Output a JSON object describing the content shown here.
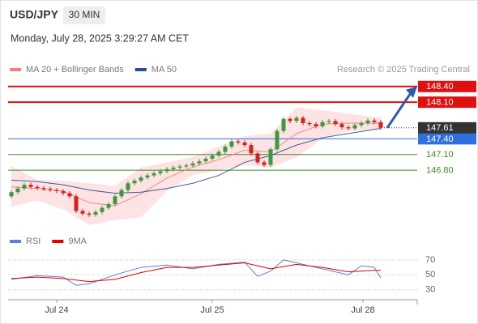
{
  "header": {
    "symbol": "USD/JPY",
    "interval": "30 MIN",
    "timestamp": "Monday, July 28, 2025 3:29:27 AM CET",
    "copyright": "Research © 2025 Trading Central"
  },
  "chart_data": [
    {
      "type": "candlestick",
      "candles": [
        [
          146.3,
          146.42,
          146.26,
          146.38
        ],
        [
          146.38,
          146.49,
          146.34,
          146.45
        ],
        [
          146.45,
          146.56,
          146.41,
          146.52
        ],
        [
          146.52,
          146.56,
          146.44,
          146.48
        ],
        [
          146.48,
          146.52,
          146.42,
          146.46
        ],
        [
          146.46,
          146.5,
          146.4,
          146.44
        ],
        [
          146.44,
          146.48,
          146.38,
          146.42
        ],
        [
          146.42,
          146.46,
          146.36,
          146.4
        ],
        [
          146.4,
          146.44,
          146.32,
          146.36
        ],
        [
          146.36,
          146.4,
          146.26,
          146.3
        ],
        [
          146.3,
          146.34,
          145.98,
          146.02
        ],
        [
          146.02,
          146.06,
          145.93,
          145.97
        ],
        [
          145.97,
          146.01,
          145.91,
          145.95
        ],
        [
          145.95,
          146.04,
          145.91,
          146.0
        ],
        [
          146.0,
          146.12,
          145.96,
          146.08
        ],
        [
          146.08,
          146.19,
          146.04,
          146.15
        ],
        [
          146.15,
          146.34,
          146.11,
          146.3
        ],
        [
          146.3,
          146.46,
          146.26,
          146.42
        ],
        [
          146.42,
          146.59,
          146.38,
          146.55
        ],
        [
          146.55,
          146.64,
          146.51,
          146.6
        ],
        [
          146.6,
          146.7,
          146.56,
          146.66
        ],
        [
          146.66,
          146.74,
          146.62,
          146.7
        ],
        [
          146.7,
          146.78,
          146.66,
          146.74
        ],
        [
          146.74,
          146.82,
          146.7,
          146.78
        ],
        [
          146.78,
          146.86,
          146.74,
          146.82
        ],
        [
          146.82,
          146.89,
          146.78,
          146.85
        ],
        [
          146.85,
          146.91,
          146.81,
          146.87
        ],
        [
          146.87,
          146.93,
          146.83,
          146.89
        ],
        [
          146.89,
          146.97,
          146.85,
          146.93
        ],
        [
          146.93,
          147.01,
          146.89,
          146.97
        ],
        [
          146.97,
          147.06,
          146.93,
          147.02
        ],
        [
          147.02,
          147.12,
          146.98,
          147.08
        ],
        [
          147.08,
          147.19,
          147.04,
          147.15
        ],
        [
          147.15,
          147.29,
          147.11,
          147.25
        ],
        [
          147.25,
          147.39,
          147.21,
          147.35
        ],
        [
          147.35,
          147.39,
          147.29,
          147.33
        ],
        [
          147.33,
          147.37,
          147.24,
          147.28
        ],
        [
          147.28,
          147.32,
          147.08,
          147.12
        ],
        [
          147.12,
          147.16,
          146.91,
          146.95
        ],
        [
          146.95,
          146.99,
          146.86,
          146.9
        ],
        [
          146.9,
          147.24,
          146.86,
          147.2
        ],
        [
          147.2,
          147.59,
          147.16,
          147.55
        ],
        [
          147.55,
          147.82,
          147.51,
          147.78
        ],
        [
          147.78,
          147.82,
          147.7,
          147.74
        ],
        [
          147.74,
          147.84,
          147.7,
          147.8
        ],
        [
          147.8,
          147.84,
          147.66,
          147.7
        ],
        [
          147.7,
          147.74,
          147.64,
          147.68
        ],
        [
          147.68,
          147.72,
          147.6,
          147.64
        ],
        [
          147.64,
          147.76,
          147.6,
          147.72
        ],
        [
          147.72,
          147.78,
          147.68,
          147.74
        ],
        [
          147.74,
          147.78,
          147.64,
          147.68
        ],
        [
          147.68,
          147.72,
          147.58,
          147.62
        ],
        [
          147.62,
          147.66,
          147.56,
          147.6
        ],
        [
          147.6,
          147.7,
          147.56,
          147.66
        ],
        [
          147.66,
          147.74,
          147.62,
          147.7
        ],
        [
          147.7,
          147.79,
          147.66,
          147.75
        ],
        [
          147.75,
          147.79,
          147.68,
          147.72
        ],
        [
          147.72,
          147.76,
          147.57,
          147.61
        ]
      ],
      "up_color": "#3c9a3c",
      "down_color": "#d42020",
      "series": [
        {
          "name": "MA 20 + Bollinger Bands",
          "color": "#f08080",
          "band_color": "#fde3e3",
          "x": [
            0,
            4,
            8,
            12,
            16,
            20,
            24,
            28,
            32,
            36,
            40,
            44,
            48,
            52,
            56,
            57
          ],
          "values": [
            146.48,
            146.45,
            146.4,
            146.18,
            146.12,
            146.35,
            146.65,
            146.86,
            147.0,
            147.18,
            147.15,
            147.5,
            147.68,
            147.7,
            147.7,
            147.69
          ],
          "upper": [
            146.88,
            146.62,
            146.6,
            146.55,
            146.5,
            146.85,
            146.95,
            147.05,
            147.25,
            147.45,
            147.5,
            148.0,
            147.95,
            147.88,
            147.82,
            147.82
          ],
          "lower": [
            146.1,
            146.22,
            146.05,
            145.75,
            145.85,
            145.9,
            146.4,
            146.7,
            146.8,
            146.9,
            146.85,
            147.05,
            147.4,
            147.55,
            147.58,
            147.56
          ]
        },
        {
          "name": "MA 50",
          "color": "#2a4d8f",
          "x": [
            0,
            4,
            8,
            12,
            16,
            20,
            24,
            28,
            32,
            36,
            40,
            44,
            48,
            52,
            56,
            57
          ],
          "values": [
            146.61,
            146.58,
            146.52,
            146.42,
            146.36,
            146.38,
            146.45,
            146.55,
            146.7,
            146.95,
            147.08,
            147.28,
            147.42,
            147.5,
            147.58,
            147.6
          ]
        }
      ],
      "levels": [
        {
          "value": 148.4,
          "label": "148.40",
          "color": "#e01010",
          "boxed": true
        },
        {
          "value": 148.1,
          "label": "148.10",
          "color": "#e01010",
          "boxed": true
        },
        {
          "value": 147.4,
          "label": "147.40",
          "color": "#2f6fe0",
          "boxed": true
        },
        {
          "value": 147.1,
          "label": "147.10",
          "color": "#3c8a2a",
          "boxed": false
        },
        {
          "value": 146.8,
          "label": "146.80",
          "color": "#3c8a2a",
          "boxed": false
        }
      ],
      "last": {
        "value": 147.61,
        "label": "147.61",
        "color": "#333333"
      },
      "xlim": [
        -0.5,
        62.625
      ],
      "ylim": [
        145.64,
        148.66
      ]
    },
    {
      "type": "line",
      "series": [
        {
          "name": "RSI",
          "color": "#5b7fd6",
          "x": [
            0,
            4,
            8,
            10,
            12,
            16,
            20,
            24,
            28,
            32,
            36,
            38,
            40,
            42,
            44,
            48,
            52,
            54,
            56,
            57
          ],
          "values": [
            44,
            49,
            47,
            36,
            38,
            50,
            60,
            63,
            58,
            64,
            67,
            48,
            55,
            70,
            66,
            58,
            50,
            62,
            60,
            46
          ]
        },
        {
          "name": "9MA",
          "color": "#e00000",
          "x": [
            0,
            4,
            8,
            12,
            16,
            20,
            24,
            28,
            32,
            36,
            40,
            44,
            48,
            52,
            56,
            57
          ],
          "values": [
            45,
            47,
            45,
            41,
            44,
            53,
            60,
            60,
            63,
            66,
            58,
            64,
            60,
            54,
            56,
            56
          ]
        }
      ],
      "xlim": [
        -0.5,
        62.625
      ],
      "ylim": [
        20,
        85
      ],
      "yticks": [
        70,
        50,
        30
      ],
      "xticks": [
        {
          "value": 7,
          "label": "Jul 24"
        },
        {
          "value": 31,
          "label": "Jul 25"
        },
        {
          "value": 54.25,
          "label": "Jul 28"
        }
      ]
    }
  ]
}
